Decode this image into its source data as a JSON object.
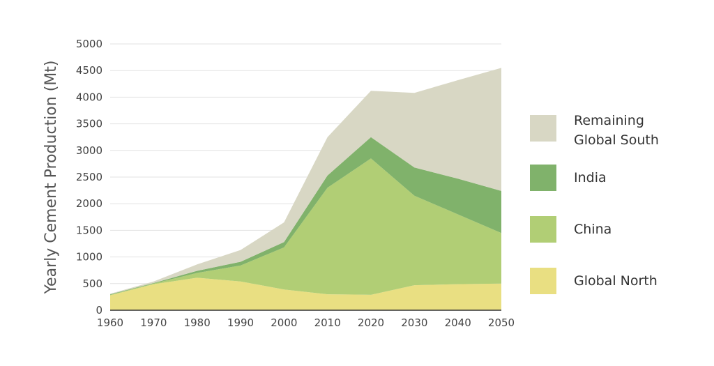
{
  "chart_data": {
    "type": "area",
    "stacked": true,
    "title": "",
    "xlabel": "",
    "ylabel": "Yearly Cement Production (Mt)",
    "x": [
      1960,
      1970,
      1980,
      1990,
      2000,
      2010,
      2020,
      2030,
      2040,
      2050
    ],
    "x_ticks": [
      "1960",
      "1970",
      "1980",
      "1990",
      "2000",
      "2010",
      "2020",
      "2030",
      "2040",
      "2050"
    ],
    "ylim": [
      0,
      5000
    ],
    "y_ticks": [
      "0",
      "500",
      "1000",
      "1500",
      "2000",
      "2500",
      "3000",
      "3500",
      "4000",
      "4500",
      "5000"
    ],
    "grid": true,
    "legend_position": "right",
    "series": [
      {
        "name": "Global North",
        "color": "#e9df82",
        "values": [
          280,
          490,
          610,
          540,
          390,
          300,
          290,
          470,
          490,
          500
        ]
      },
      {
        "name": "China",
        "color": "#b1ce75",
        "values": [
          10,
          10,
          90,
          300,
          790,
          2000,
          2560,
          1680,
          1310,
          950
        ]
      },
      {
        "name": "India",
        "color": "#80b26b",
        "values": [
          10,
          10,
          40,
          70,
          100,
          230,
          400,
          530,
          670,
          790
        ]
      },
      {
        "name": "Remaining\nGlobal South",
        "color": "#d8d7c4",
        "values": [
          10,
          30,
          120,
          220,
          370,
          720,
          870,
          1400,
          1850,
          2310
        ]
      }
    ]
  }
}
